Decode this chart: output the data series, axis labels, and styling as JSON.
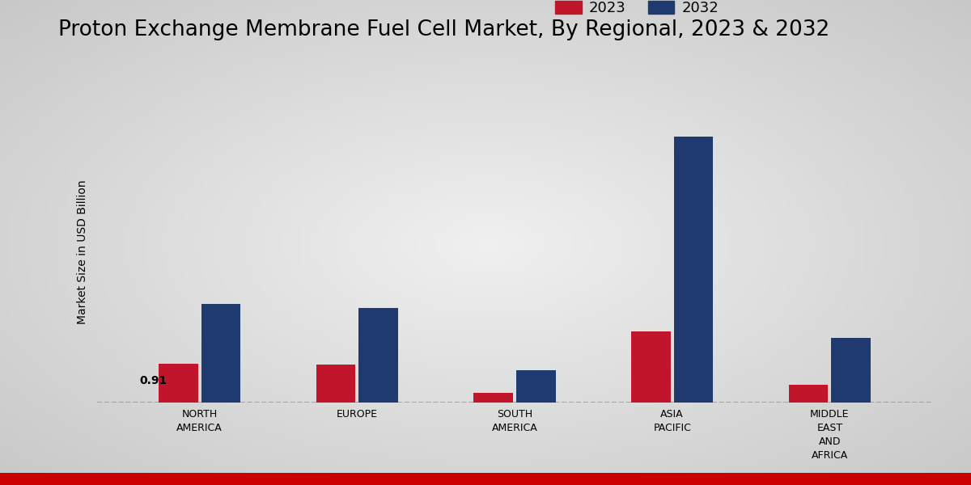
{
  "title": "Proton Exchange Membrane Fuel Cell Market, By Regional, 2023 & 2032",
  "ylabel": "Market Size in USD Billion",
  "categories": [
    "NORTH\nAMERICA",
    "EUROPE",
    "SOUTH\nAMERICA",
    "ASIA\nPACIFIC",
    "MIDDLE\nEAST\nAND\nAFRICA"
  ],
  "values_2023": [
    0.91,
    0.88,
    0.22,
    1.65,
    0.42
  ],
  "values_2032": [
    2.3,
    2.2,
    0.75,
    6.2,
    1.5
  ],
  "color_2023": "#c0152a",
  "color_2032": "#1e3a6e",
  "bg_color_center": "#f0f0f0",
  "bg_color_edge": "#c8c8c8",
  "annotation_text": "0.91",
  "bar_width": 0.25,
  "ylim": [
    0,
    7.0
  ],
  "legend_labels": [
    "2023",
    "2032"
  ],
  "title_fontsize": 19,
  "ylabel_fontsize": 10,
  "tick_fontsize": 9,
  "legend_fontsize": 13,
  "bottom_bar_color": "#cc0000",
  "dashed_line_color": "#999999",
  "annotation_fontsize": 10
}
